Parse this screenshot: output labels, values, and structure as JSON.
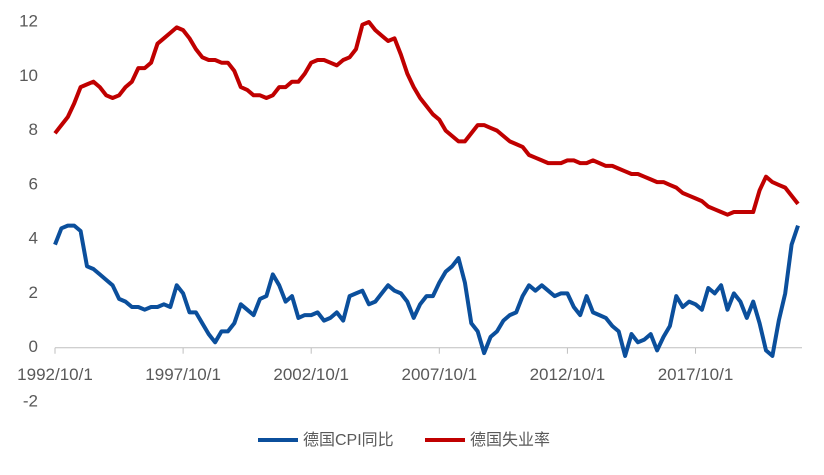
{
  "chart_data": {
    "type": "line",
    "x": [
      "1992/10/1",
      "1993/1/1",
      "1993/4/1",
      "1993/7/1",
      "1993/10/1",
      "1994/1/1",
      "1994/4/1",
      "1994/7/1",
      "1994/10/1",
      "1995/1/1",
      "1995/4/1",
      "1995/7/1",
      "1995/10/1",
      "1996/1/1",
      "1996/4/1",
      "1996/7/1",
      "1996/10/1",
      "1997/1/1",
      "1997/4/1",
      "1997/7/1",
      "1997/10/1",
      "1998/1/1",
      "1998/4/1",
      "1998/7/1",
      "1998/10/1",
      "1999/1/1",
      "1999/4/1",
      "1999/7/1",
      "1999/10/1",
      "2000/1/1",
      "2000/4/1",
      "2000/7/1",
      "2000/10/1",
      "2001/1/1",
      "2001/4/1",
      "2001/7/1",
      "2001/10/1",
      "2002/1/1",
      "2002/4/1",
      "2002/7/1",
      "2002/10/1",
      "2003/1/1",
      "2003/4/1",
      "2003/7/1",
      "2003/10/1",
      "2004/1/1",
      "2004/4/1",
      "2004/7/1",
      "2004/10/1",
      "2005/1/1",
      "2005/4/1",
      "2005/7/1",
      "2005/10/1",
      "2006/1/1",
      "2006/4/1",
      "2006/7/1",
      "2006/10/1",
      "2007/1/1",
      "2007/4/1",
      "2007/7/1",
      "2007/10/1",
      "2008/1/1",
      "2008/4/1",
      "2008/7/1",
      "2008/10/1",
      "2009/1/1",
      "2009/4/1",
      "2009/7/1",
      "2009/10/1",
      "2010/1/1",
      "2010/4/1",
      "2010/7/1",
      "2010/10/1",
      "2011/1/1",
      "2011/4/1",
      "2011/7/1",
      "2011/10/1",
      "2012/1/1",
      "2012/4/1",
      "2012/7/1",
      "2012/10/1",
      "2013/1/1",
      "2013/4/1",
      "2013/7/1",
      "2013/10/1",
      "2014/1/1",
      "2014/4/1",
      "2014/7/1",
      "2014/10/1",
      "2015/1/1",
      "2015/4/1",
      "2015/7/1",
      "2015/10/1",
      "2016/1/1",
      "2016/4/1",
      "2016/7/1",
      "2016/10/1",
      "2017/1/1",
      "2017/4/1",
      "2017/7/1",
      "2017/10/1",
      "2018/1/1",
      "2018/4/1",
      "2018/7/1",
      "2018/10/1",
      "2019/1/1",
      "2019/4/1",
      "2019/7/1",
      "2019/10/1",
      "2020/1/1",
      "2020/4/1",
      "2020/7/1",
      "2020/10/1",
      "2021/1/1",
      "2021/4/1",
      "2021/7/1",
      "2021/10/1"
    ],
    "series": [
      {
        "name": "德国CPI同比",
        "color": "#0b4f9c",
        "values": [
          3.8,
          4.4,
          4.5,
          4.5,
          4.3,
          3.0,
          2.9,
          2.7,
          2.5,
          2.3,
          1.8,
          1.7,
          1.5,
          1.5,
          1.4,
          1.5,
          1.5,
          1.6,
          1.5,
          2.3,
          2.0,
          1.3,
          1.3,
          0.9,
          0.5,
          0.2,
          0.6,
          0.6,
          0.9,
          1.6,
          1.4,
          1.2,
          1.8,
          1.9,
          2.7,
          2.3,
          1.7,
          1.9,
          1.1,
          1.2,
          1.2,
          1.3,
          1.0,
          1.1,
          1.3,
          1.0,
          1.9,
          2.0,
          2.1,
          1.6,
          1.7,
          2.0,
          2.3,
          2.1,
          2.0,
          1.7,
          1.1,
          1.6,
          1.9,
          1.9,
          2.4,
          2.8,
          3.0,
          3.3,
          2.4,
          0.9,
          0.6,
          -0.2,
          0.4,
          0.6,
          1.0,
          1.2,
          1.3,
          1.9,
          2.3,
          2.1,
          2.3,
          2.1,
          1.9,
          2.0,
          2.0,
          1.5,
          1.2,
          1.9,
          1.3,
          1.2,
          1.1,
          0.8,
          0.6,
          -0.3,
          0.5,
          0.2,
          0.3,
          0.5,
          -0.1,
          0.4,
          0.8,
          1.9,
          1.5,
          1.7,
          1.6,
          1.4,
          2.2,
          2.0,
          2.3,
          1.4,
          2.0,
          1.7,
          1.1,
          1.7,
          0.9,
          -0.1,
          -0.3,
          1.0,
          2.0,
          3.8,
          4.5
        ]
      },
      {
        "name": "德国失业率",
        "color": "#c00000",
        "values": [
          7.9,
          8.2,
          8.5,
          9.0,
          9.6,
          9.7,
          9.8,
          9.6,
          9.3,
          9.2,
          9.3,
          9.6,
          9.8,
          10.3,
          10.3,
          10.5,
          11.2,
          11.4,
          11.6,
          11.8,
          11.7,
          11.4,
          11.0,
          10.7,
          10.6,
          10.6,
          10.5,
          10.5,
          10.2,
          9.6,
          9.5,
          9.3,
          9.3,
          9.2,
          9.3,
          9.6,
          9.6,
          9.8,
          9.8,
          10.1,
          10.5,
          10.6,
          10.6,
          10.5,
          10.4,
          10.6,
          10.7,
          11.0,
          11.9,
          12.0,
          11.7,
          11.5,
          11.3,
          11.4,
          10.8,
          10.1,
          9.6,
          9.2,
          8.9,
          8.6,
          8.4,
          8.0,
          7.8,
          7.6,
          7.6,
          7.9,
          8.2,
          8.2,
          8.1,
          8.0,
          7.8,
          7.6,
          7.5,
          7.4,
          7.1,
          7.0,
          6.9,
          6.8,
          6.8,
          6.8,
          6.9,
          6.9,
          6.8,
          6.8,
          6.9,
          6.8,
          6.7,
          6.7,
          6.6,
          6.5,
          6.4,
          6.4,
          6.3,
          6.2,
          6.1,
          6.1,
          6.0,
          5.9,
          5.7,
          5.6,
          5.5,
          5.4,
          5.2,
          5.1,
          5.0,
          4.9,
          5.0,
          5.0,
          5.0,
          5.0,
          5.8,
          6.3,
          6.1,
          6.0,
          5.9,
          5.6,
          5.3
        ]
      }
    ],
    "ylim": [
      -2,
      12
    ],
    "yticks": [
      -2,
      0,
      2,
      4,
      6,
      8,
      10,
      12
    ],
    "grid": false,
    "legend": "bottom"
  }
}
